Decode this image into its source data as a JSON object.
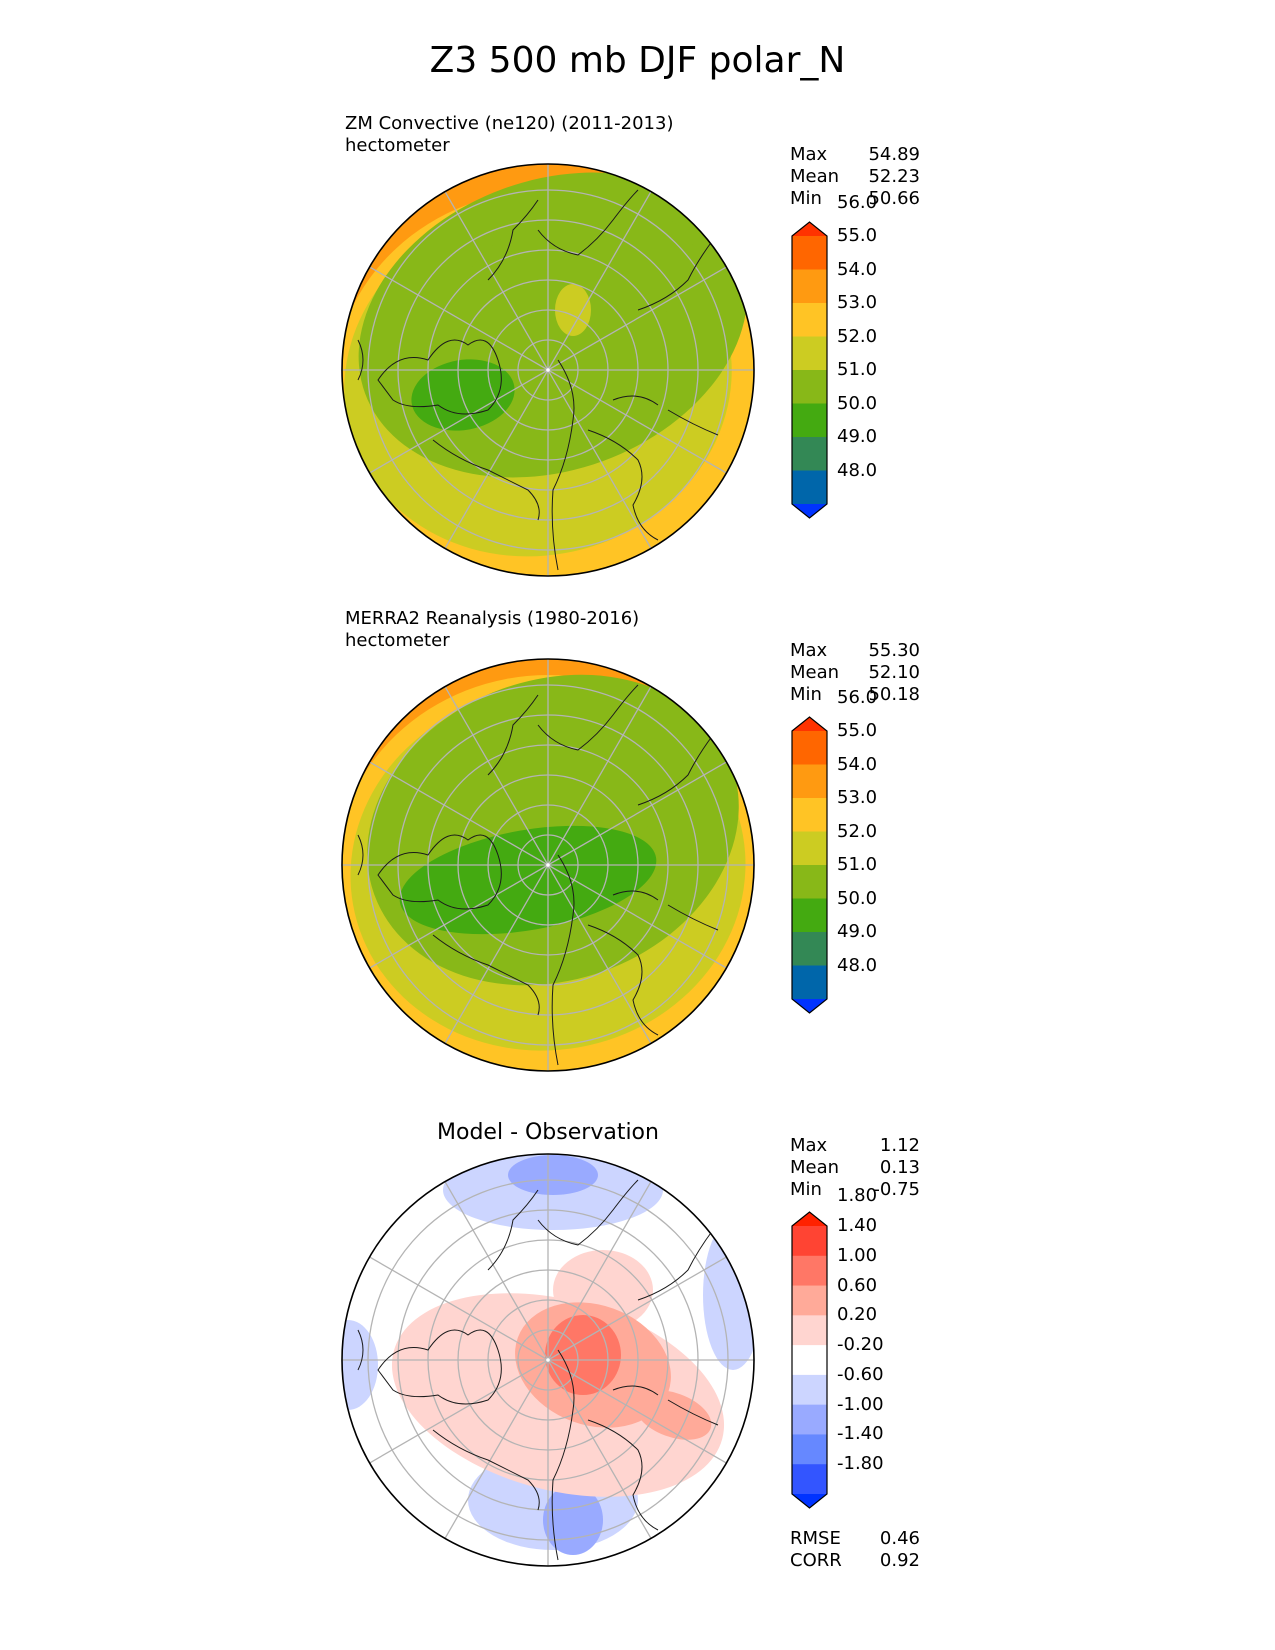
{
  "title": "Z3 500 mb DJF polar_N",
  "colorbar_palettes": {
    "field": [
      "#0033ff",
      "#0066aa",
      "#338855",
      "#44aa11",
      "#88b818",
      "#cccc22",
      "#ffc425",
      "#ff9a11",
      "#ff6600",
      "#ff3300"
    ],
    "diff": [
      "#0033ff",
      "#3355ff",
      "#6688ff",
      "#99aaff",
      "#ccd5ff",
      "#ffffff",
      "#ffd5d0",
      "#ffaa99",
      "#ff7766",
      "#ff4433",
      "#ff2200"
    ]
  },
  "panels": [
    {
      "title": "ZM Convective (ne120) (2011-2013)",
      "units": "hectometer",
      "stats": [
        {
          "label": "Max",
          "value": "54.89"
        },
        {
          "label": "Mean",
          "value": "52.23"
        },
        {
          "label": "Min",
          "value": "50.66"
        }
      ]
    },
    {
      "title": "MERRA2 Reanalysis (1980-2016)",
      "units": "hectometer",
      "stats": [
        {
          "label": "Max",
          "value": "55.30"
        },
        {
          "label": "Mean",
          "value": "52.10"
        },
        {
          "label": "Min",
          "value": "50.18"
        }
      ]
    },
    {
      "title": "Model - Observation",
      "stats": [
        {
          "label": "Max",
          "value": "1.12"
        },
        {
          "label": "Mean",
          "value": "0.13"
        },
        {
          "label": "Min",
          "value": "-0.75"
        }
      ],
      "extra_stats": [
        {
          "label": "RMSE",
          "value": "0.46"
        },
        {
          "label": "CORR",
          "value": "0.92"
        }
      ]
    }
  ],
  "chart_data": [
    {
      "type": "heatmap",
      "projection": "north polar stereographic",
      "title": "ZM Convective (ne120) (2011-2013)",
      "units": "hectometer",
      "colorbar_levels": [
        "48.0",
        "49.0",
        "50.0",
        "51.0",
        "52.0",
        "53.0",
        "54.0",
        "55.0",
        "56.0"
      ],
      "max": 54.89,
      "mean": 52.23,
      "min": 50.66
    },
    {
      "type": "heatmap",
      "projection": "north polar stereographic",
      "title": "MERRA2 Reanalysis (1980-2016)",
      "units": "hectometer",
      "colorbar_levels": [
        "48.0",
        "49.0",
        "50.0",
        "51.0",
        "52.0",
        "53.0",
        "54.0",
        "55.0",
        "56.0"
      ],
      "max": 55.3,
      "mean": 52.1,
      "min": 50.18
    },
    {
      "type": "heatmap",
      "projection": "north polar stereographic",
      "title": "Model - Observation",
      "colorbar_levels": [
        "-1.80",
        "-1.40",
        "-1.00",
        "-0.60",
        "-0.20",
        "0.20",
        "0.60",
        "1.00",
        "1.40",
        "1.80"
      ],
      "max": 1.12,
      "mean": 0.13,
      "min": -0.75,
      "rmse": 0.46,
      "corr": 0.92
    }
  ]
}
